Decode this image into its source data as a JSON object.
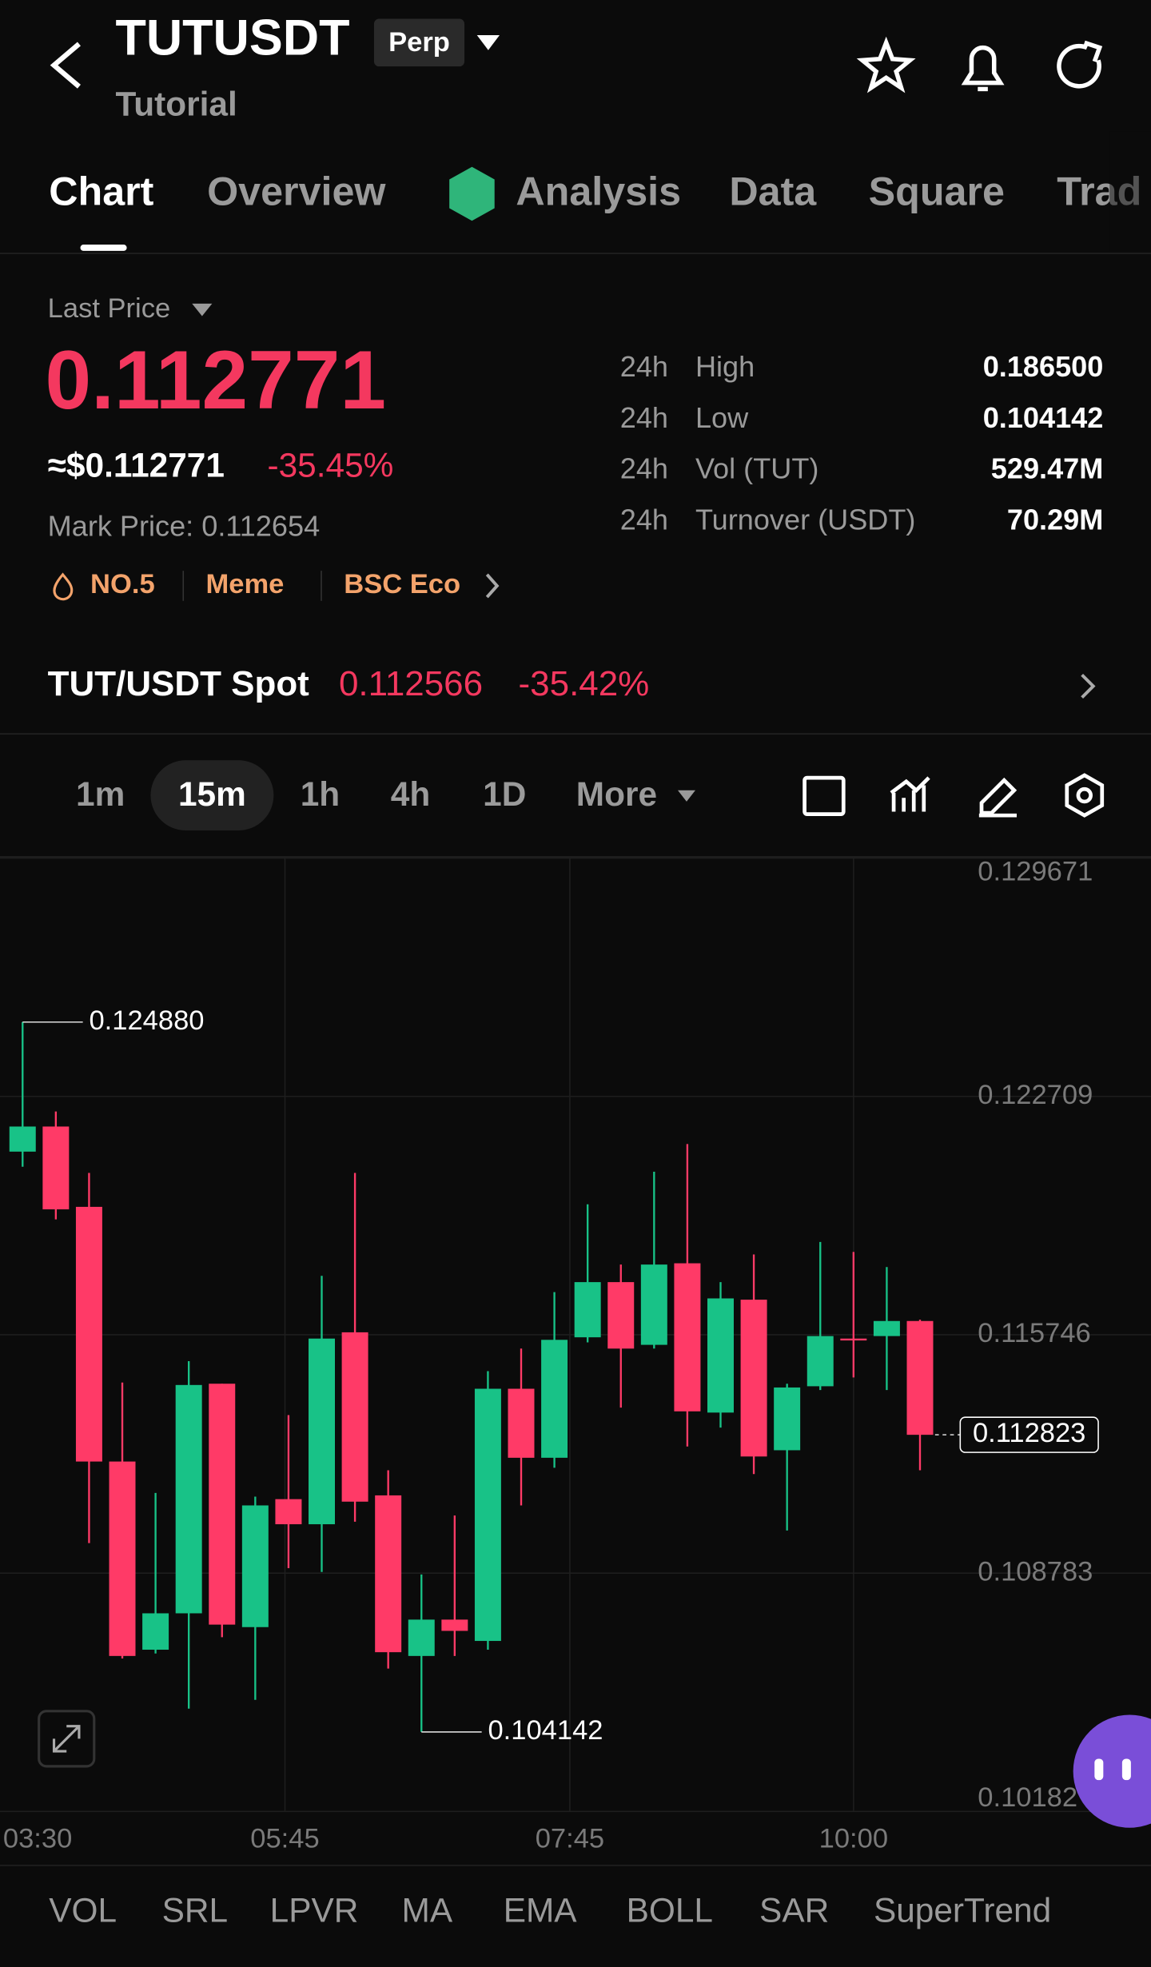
{
  "header": {
    "symbol": "TUTUSDT",
    "badge": "Perp",
    "subtitle": "Tutorial"
  },
  "tabs": [
    "Chart",
    "Overview",
    "Analysis",
    "Data",
    "Square",
    "Trad"
  ],
  "price": {
    "label": "Last Price",
    "last": "0.112771",
    "usd": "≈$0.112771",
    "change": "-35.45%",
    "mark": "Mark Price: 0.112654"
  },
  "tags": [
    "NO.5",
    "Meme",
    "BSC Eco"
  ],
  "stats": [
    {
      "period": "24h",
      "name": "High",
      "value": "0.186500"
    },
    {
      "period": "24h",
      "name": "Low",
      "value": "0.104142"
    },
    {
      "period": "24h",
      "name": "Vol (TUT)",
      "value": "529.47M"
    },
    {
      "period": "24h",
      "name": "Turnover (USDT)",
      "value": "70.29M"
    }
  ],
  "spot": {
    "pair": "TUT/USDT Spot",
    "price": "0.112566",
    "change": "-35.42%"
  },
  "intervals": [
    "1m",
    "15m",
    "1h",
    "4h",
    "1D",
    "More"
  ],
  "indicators": [
    "VOL",
    "SRL",
    "LPVR",
    "MA",
    "EMA",
    "BOLL",
    "SAR",
    "SuperTrend"
  ],
  "chart_data": {
    "type": "candlestick",
    "up_color": "#18c287",
    "down_color": "#ff3a67",
    "open": [
      0.121095,
      0.121828,
      0.119482,
      0.112042,
      0.106545,
      0.107608,
      0.114315,
      0.107205,
      0.110943,
      0.11021,
      0.115817,
      0.111053,
      0.106362,
      0.107424,
      0.106801,
      0.114168,
      0.112152,
      0.115671,
      0.117283,
      0.115451,
      0.117833,
      0.113472,
      0.11677,
      0.112372,
      0.114241,
      0.115634,
      0.115707,
      0.116147
    ],
    "high": [
      0.12488,
      0.122268,
      0.120472,
      0.114351,
      0.111126,
      0.114974,
      0.114315,
      0.111016,
      0.113398,
      0.117467,
      0.120472,
      0.111786,
      0.108744,
      0.110466,
      0.114681,
      0.115341,
      0.11699,
      0.119556,
      0.117796,
      0.120508,
      0.121315,
      0.117283,
      0.11809,
      0.114315,
      0.118456,
      0.118163,
      0.117723,
      0.116184
    ],
    "low": [
      0.120655,
      0.119116,
      0.10966,
      0.106288,
      0.106435,
      0.104822,
      0.106911,
      0.105079,
      0.108927,
      0.108817,
      0.110283,
      0.105995,
      0.104142,
      0.106362,
      0.106545,
      0.11076,
      0.111859,
      0.115524,
      0.113618,
      0.115341,
      0.112482,
      0.113032,
      0.111676,
      0.110027,
      0.114131,
      0.114498,
      0.114131,
      0.111786
    ],
    "close": [
      0.121828,
      0.119409,
      0.112042,
      0.106362,
      0.107608,
      0.114278,
      0.107278,
      0.11076,
      0.11021,
      0.115634,
      0.11087,
      0.106472,
      0.107424,
      0.107095,
      0.114168,
      0.112152,
      0.115597,
      0.117283,
      0.115341,
      0.117796,
      0.113508,
      0.116807,
      0.112189,
      0.114205,
      0.115707,
      0.115597,
      0.116147,
      0.112823
    ],
    "ylim": [
      0.10182,
      0.129671
    ],
    "yticks": [
      0.129671,
      0.122709,
      0.115746,
      0.108783,
      0.10182
    ],
    "x_labels": [
      "03:30",
      "05:45",
      "07:45",
      "10:00"
    ],
    "annotations": [
      {
        "value": 0.12488,
        "label": "0.124880"
      },
      {
        "value": 0.104142,
        "label": "0.104142"
      }
    ],
    "last_price": {
      "value": 0.112823,
      "label": "0.112823"
    }
  }
}
